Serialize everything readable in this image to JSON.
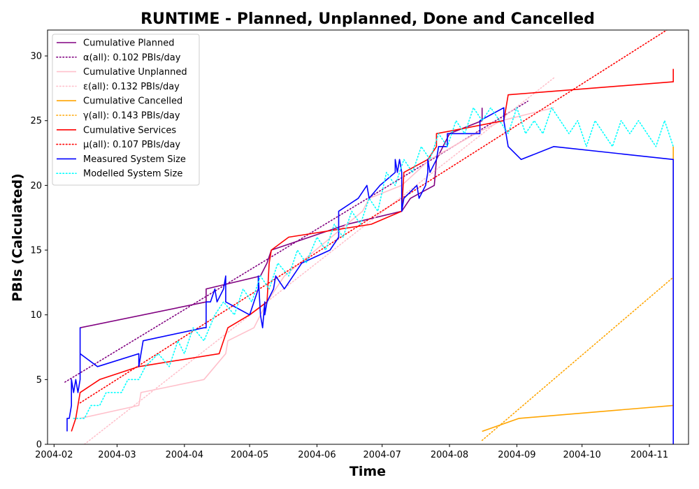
{
  "chart_data": {
    "type": "line",
    "title": "RUNTIME - Planned, Unplanned, Done  and Cancelled",
    "xlabel": "Time",
    "ylabel": "PBIs (Calculated)",
    "xlim": [
      "2004-01-29",
      "2004-11-19"
    ],
    "ylim": [
      0,
      32
    ],
    "x_ticks": [
      "2004-02-01",
      "2004-03-01",
      "2004-04-01",
      "2004-05-01",
      "2004-06-01",
      "2004-07-01",
      "2004-08-01",
      "2004-09-01",
      "2004-10-01",
      "2004-11-01"
    ],
    "x_tick_labels": [
      "2004-02",
      "2004-03",
      "2004-04",
      "2004-05",
      "2004-06",
      "2004-07",
      "2004-08",
      "2004-09",
      "2004-10",
      "2004-11"
    ],
    "y_ticks": [
      0,
      5,
      10,
      15,
      20,
      25,
      30
    ],
    "y_tick_labels": [
      "0",
      "5",
      "10",
      "15",
      "20",
      "25",
      "30"
    ],
    "grid": false,
    "legend_position": "top-left",
    "series": [
      {
        "name": "Cumulative Planned",
        "color": "#800080",
        "style": "solid",
        "points": [
          [
            "2004-02-13",
            9
          ],
          [
            "2004-04-11",
            11
          ],
          [
            "2004-04-11",
            12
          ],
          [
            "2004-05-06",
            13
          ],
          [
            "2004-05-09",
            14
          ],
          [
            "2004-05-11",
            15
          ],
          [
            "2004-06-15",
            17
          ],
          [
            "2004-07-10",
            18
          ],
          [
            "2004-07-14",
            19
          ],
          [
            "2004-07-25",
            20
          ],
          [
            "2004-07-26",
            22
          ],
          [
            "2004-08-01",
            24
          ],
          [
            "2004-08-16",
            25
          ],
          [
            "2004-08-16",
            26
          ]
        ]
      },
      {
        "name": "α(all): 0.102 PBIs/day",
        "color": "#800080",
        "style": "dotted",
        "points": [
          [
            "2004-02-06",
            4.8
          ],
          [
            "2004-09-06",
            26.5
          ]
        ]
      },
      {
        "name": "Cumulative Unplanned",
        "color": "#ffc0cb",
        "style": "solid",
        "points": [
          [
            "2004-02-13",
            2
          ],
          [
            "2004-03-11",
            3
          ],
          [
            "2004-03-12",
            4
          ],
          [
            "2004-04-10",
            5
          ],
          [
            "2004-04-20",
            7
          ],
          [
            "2004-04-21",
            8
          ],
          [
            "2004-05-03",
            9
          ],
          [
            "2004-05-09",
            11
          ],
          [
            "2004-05-17",
            13
          ],
          [
            "2004-06-22",
            18
          ],
          [
            "2004-06-25",
            19
          ],
          [
            "2004-07-10",
            20
          ],
          [
            "2004-07-23",
            22
          ],
          [
            "2004-08-13",
            24
          ],
          [
            "2004-08-25",
            25
          ],
          [
            "2004-09-18",
            26
          ]
        ]
      },
      {
        "name": "ε(all): 0.132 PBIs/day",
        "color": "#ffc0cb",
        "style": "dotted",
        "points": [
          [
            "2004-02-15",
            0
          ],
          [
            "2004-09-18",
            28.3
          ]
        ]
      },
      {
        "name": "Cumulative Cancelled",
        "color": "#ffa500",
        "style": "solid",
        "points": [
          [
            "2004-08-16",
            1
          ],
          [
            "2004-09-02",
            2
          ],
          [
            "2004-11-12",
            3
          ],
          [
            "2004-11-12",
            23
          ]
        ]
      },
      {
        "name": "γ(all): 0.143 PBIs/day",
        "color": "#ffa500",
        "style": "dotted",
        "points": [
          [
            "2004-08-16",
            0.3
          ],
          [
            "2004-11-12",
            12.9
          ]
        ]
      },
      {
        "name": "Cumulative Services",
        "color": "#ff0000",
        "style": "solid",
        "points": [
          [
            "2004-02-09",
            1
          ],
          [
            "2004-02-11",
            2
          ],
          [
            "2004-02-13",
            4
          ],
          [
            "2004-02-22",
            5
          ],
          [
            "2004-03-11",
            6
          ],
          [
            "2004-04-17",
            7
          ],
          [
            "2004-04-21",
            9
          ],
          [
            "2004-05-01",
            10
          ],
          [
            "2004-05-09",
            11
          ],
          [
            "2004-05-10",
            14
          ],
          [
            "2004-05-11",
            15
          ],
          [
            "2004-05-19",
            16
          ],
          [
            "2004-06-26",
            17
          ],
          [
            "2004-07-10",
            18
          ],
          [
            "2004-07-11",
            21
          ],
          [
            "2004-07-22",
            22
          ],
          [
            "2004-07-26",
            23
          ],
          [
            "2004-07-26",
            24
          ],
          [
            "2004-08-26",
            25
          ],
          [
            "2004-08-27",
            26
          ],
          [
            "2004-08-28",
            27
          ],
          [
            "2004-11-12",
            28
          ],
          [
            "2004-11-12",
            29
          ]
        ]
      },
      {
        "name": "μ(all): 0.107 PBIs/day",
        "color": "#ff0000",
        "style": "dotted",
        "points": [
          [
            "2004-02-13",
            3.2
          ],
          [
            "2004-11-09",
            32
          ]
        ]
      },
      {
        "name": "Measured System Size",
        "color": "#0000ff",
        "style": "solid",
        "points": [
          [
            "2004-02-07",
            1
          ],
          [
            "2004-02-07",
            2
          ],
          [
            "2004-02-08",
            2
          ],
          [
            "2004-02-09",
            3
          ],
          [
            "2004-02-09",
            5
          ],
          [
            "2004-02-10",
            4
          ],
          [
            "2004-02-11",
            5
          ],
          [
            "2004-02-12",
            4
          ],
          [
            "2004-02-13",
            5
          ],
          [
            "2004-02-13",
            7
          ],
          [
            "2004-02-13",
            9
          ],
          [
            "2004-02-13",
            7
          ],
          [
            "2004-02-21",
            6
          ],
          [
            "2004-03-11",
            7
          ],
          [
            "2004-03-11",
            6
          ],
          [
            "2004-03-12",
            7
          ],
          [
            "2004-03-13",
            8
          ],
          [
            "2004-04-10",
            9
          ],
          [
            "2004-04-11",
            9
          ],
          [
            "2004-04-11",
            11
          ],
          [
            "2004-04-13",
            11
          ],
          [
            "2004-04-15",
            12
          ],
          [
            "2004-04-16",
            11
          ],
          [
            "2004-04-19",
            12
          ],
          [
            "2004-04-20",
            13
          ],
          [
            "2004-04-20",
            11
          ],
          [
            "2004-05-01",
            10
          ],
          [
            "2004-05-05",
            12
          ],
          [
            "2004-05-05",
            13
          ],
          [
            "2004-05-06",
            10
          ],
          [
            "2004-05-07",
            9
          ],
          [
            "2004-05-08",
            11
          ],
          [
            "2004-05-08",
            10
          ],
          [
            "2004-05-09",
            11
          ],
          [
            "2004-05-12",
            12
          ],
          [
            "2004-05-13",
            13
          ],
          [
            "2004-05-17",
            12
          ],
          [
            "2004-05-25",
            14
          ],
          [
            "2004-06-07",
            15
          ],
          [
            "2004-06-11",
            16
          ],
          [
            "2004-06-11",
            18
          ],
          [
            "2004-06-20",
            19
          ],
          [
            "2004-06-24",
            20
          ],
          [
            "2004-06-25",
            19
          ],
          [
            "2004-06-30",
            20
          ],
          [
            "2004-07-07",
            21
          ],
          [
            "2004-07-07",
            22
          ],
          [
            "2004-07-08",
            21
          ],
          [
            "2004-07-09",
            22
          ],
          [
            "2004-07-10",
            21
          ],
          [
            "2004-07-10",
            18
          ],
          [
            "2004-07-11",
            19
          ],
          [
            "2004-07-17",
            20
          ],
          [
            "2004-07-18",
            19
          ],
          [
            "2004-07-21",
            20
          ],
          [
            "2004-07-22",
            21
          ],
          [
            "2004-07-22",
            22
          ],
          [
            "2004-07-23",
            21
          ],
          [
            "2004-07-26",
            22
          ],
          [
            "2004-07-27",
            23
          ],
          [
            "2004-07-31",
            23
          ],
          [
            "2004-07-31",
            24
          ],
          [
            "2004-08-15",
            24
          ],
          [
            "2004-08-15",
            25
          ],
          [
            "2004-08-26",
            26
          ],
          [
            "2004-08-26",
            25
          ],
          [
            "2004-08-27",
            24
          ],
          [
            "2004-08-28",
            23
          ],
          [
            "2004-09-03",
            22
          ],
          [
            "2004-09-18",
            23
          ],
          [
            "2004-11-12",
            22
          ],
          [
            "2004-11-12",
            0
          ]
        ]
      },
      {
        "name": "Modelled System Size",
        "color": "#00ffff",
        "style": "dotted",
        "points": [
          [
            "2004-02-10",
            2
          ],
          [
            "2004-02-15",
            2
          ],
          [
            "2004-02-18",
            3
          ],
          [
            "2004-02-22",
            3
          ],
          [
            "2004-02-25",
            4
          ],
          [
            "2004-03-03",
            4
          ],
          [
            "2004-03-06",
            5
          ],
          [
            "2004-03-11",
            5
          ],
          [
            "2004-03-14",
            6
          ],
          [
            "2004-03-20",
            7
          ],
          [
            "2004-03-25",
            6
          ],
          [
            "2004-03-29",
            8
          ],
          [
            "2004-04-01",
            7
          ],
          [
            "2004-04-05",
            9
          ],
          [
            "2004-04-10",
            8
          ],
          [
            "2004-04-15",
            10
          ],
          [
            "2004-04-19",
            11
          ],
          [
            "2004-04-24",
            10
          ],
          [
            "2004-04-28",
            12
          ],
          [
            "2004-05-02",
            11
          ],
          [
            "2004-05-06",
            13
          ],
          [
            "2004-05-10",
            12
          ],
          [
            "2004-05-14",
            14
          ],
          [
            "2004-05-19",
            13
          ],
          [
            "2004-05-23",
            15
          ],
          [
            "2004-05-27",
            14
          ],
          [
            "2004-06-01",
            16
          ],
          [
            "2004-06-05",
            15
          ],
          [
            "2004-06-09",
            17
          ],
          [
            "2004-06-13",
            16
          ],
          [
            "2004-06-17",
            18
          ],
          [
            "2004-06-21",
            17
          ],
          [
            "2004-06-25",
            19
          ],
          [
            "2004-06-29",
            18
          ],
          [
            "2004-07-03",
            21
          ],
          [
            "2004-07-07",
            20
          ],
          [
            "2004-07-11",
            22
          ],
          [
            "2004-07-15",
            21
          ],
          [
            "2004-07-19",
            23
          ],
          [
            "2004-07-23",
            22
          ],
          [
            "2004-07-27",
            24
          ],
          [
            "2004-07-31",
            23
          ],
          [
            "2004-08-04",
            25
          ],
          [
            "2004-08-08",
            24
          ],
          [
            "2004-08-12",
            26
          ],
          [
            "2004-08-16",
            25
          ],
          [
            "2004-08-20",
            26
          ],
          [
            "2004-08-24",
            25
          ],
          [
            "2004-08-28",
            24
          ],
          [
            "2004-09-01",
            26
          ],
          [
            "2004-09-05",
            24
          ],
          [
            "2004-09-09",
            25
          ],
          [
            "2004-09-13",
            24
          ],
          [
            "2004-09-17",
            26
          ],
          [
            "2004-09-21",
            25
          ],
          [
            "2004-09-25",
            24
          ],
          [
            "2004-09-29",
            25
          ],
          [
            "2004-10-03",
            23
          ],
          [
            "2004-10-07",
            25
          ],
          [
            "2004-10-11",
            24
          ],
          [
            "2004-10-15",
            23
          ],
          [
            "2004-10-19",
            25
          ],
          [
            "2004-10-23",
            24
          ],
          [
            "2004-10-27",
            25
          ],
          [
            "2004-10-31",
            24
          ],
          [
            "2004-11-04",
            23
          ],
          [
            "2004-11-08",
            25
          ],
          [
            "2004-11-12",
            23
          ]
        ]
      }
    ]
  }
}
